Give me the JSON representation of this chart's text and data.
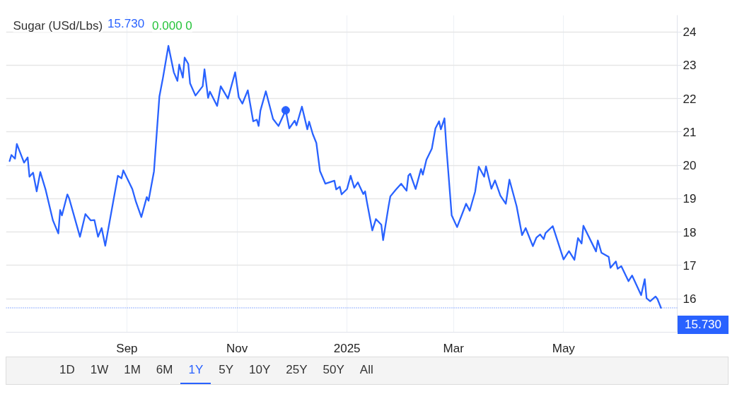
{
  "chart_data": {
    "type": "line",
    "title": "Sugar (USd/Lbs)",
    "annotations": [
      "15.730",
      "0.000 0",
      "1D",
      "1W",
      "1M",
      "6M",
      "1Y",
      "5Y",
      "10Y",
      "25Y",
      "50Y",
      "All"
    ],
    "x": [
      "2024-06-28",
      "2024-06-29",
      "2024-07-01",
      "2024-07-02",
      "2024-07-06",
      "2024-07-08",
      "2024-07-09",
      "2024-07-11",
      "2024-07-13",
      "2024-07-15",
      "2024-07-18",
      "2024-07-22",
      "2024-07-25",
      "2024-07-26",
      "2024-07-27",
      "2024-07-30",
      "2024-07-31",
      "2024-08-06",
      "2024-08-09",
      "2024-08-12",
      "2024-08-14",
      "2024-08-16",
      "2024-08-18",
      "2024-08-20",
      "2024-08-27",
      "2024-08-29",
      "2024-08-30",
      "2024-09-04",
      "2024-09-06",
      "2024-09-09",
      "2024-09-12",
      "2024-09-13",
      "2024-09-16",
      "2024-09-19",
      "2024-09-21",
      "2024-09-24",
      "2024-09-27",
      "2024-09-29",
      "2024-09-30",
      "2024-10-02",
      "2024-10-03",
      "2024-10-05",
      "2024-10-06",
      "2024-10-09",
      "2024-10-13",
      "2024-10-14",
      "2024-10-16",
      "2024-10-17",
      "2024-10-21",
      "2024-10-23",
      "2024-10-27",
      "2024-10-31",
      "2024-11-02",
      "2024-11-04",
      "2024-11-07",
      "2024-11-10",
      "2024-11-12",
      "2024-11-13",
      "2024-11-14",
      "2024-11-17",
      "2024-11-21",
      "2024-11-24",
      "2024-11-28",
      "2024-11-30",
      "2024-12-03",
      "2024-12-04",
      "2024-12-07",
      "2024-12-10",
      "2024-12-11",
      "2024-12-13",
      "2024-12-15",
      "2024-12-17",
      "2024-12-20",
      "2024-12-25",
      "2024-12-26",
      "2024-12-28",
      "2024-12-29",
      "2025-01-01",
      "2025-01-03",
      "2025-01-05",
      "2025-01-07",
      "2025-01-10",
      "2025-01-11",
      "2025-01-12",
      "2025-01-15",
      "2025-01-17",
      "2025-01-20",
      "2025-01-21",
      "2025-01-24",
      "2025-01-25",
      "2025-01-28",
      "2025-01-31",
      "2025-02-03",
      "2025-02-04",
      "2025-02-05",
      "2025-02-08",
      "2025-02-11",
      "2025-02-12",
      "2025-02-14",
      "2025-02-17",
      "2025-02-19",
      "2025-02-21",
      "2025-02-22",
      "2025-02-24",
      "2025-02-25",
      "2025-02-28",
      "2025-03-03",
      "2025-03-08",
      "2025-03-10",
      "2025-03-13",
      "2025-03-15",
      "2025-03-18",
      "2025-03-19",
      "2025-03-22",
      "2025-03-24",
      "2025-03-27",
      "2025-03-30",
      "2025-04-01",
      "2025-04-05",
      "2025-04-08",
      "2025-04-10",
      "2025-04-14",
      "2025-04-16",
      "2025-04-18",
      "2025-04-20",
      "2025-04-21",
      "2025-04-25",
      "2025-05-01",
      "2025-05-04",
      "2025-05-07",
      "2025-05-09",
      "2025-05-11",
      "2025-05-12",
      "2025-05-19",
      "2025-05-20",
      "2025-05-22",
      "2025-05-26",
      "2025-05-27",
      "2025-05-30",
      "2025-05-31",
      "2025-06-02",
      "2025-06-06",
      "2025-06-08",
      "2025-06-13",
      "2025-06-15",
      "2025-06-16",
      "2025-06-18",
      "2025-06-21",
      "2025-06-22",
      "2025-06-24"
    ],
    "series": [
      {
        "color": "#2962ff",
        "values": [
          20.13,
          20.31,
          20.2,
          20.64,
          20.08,
          20.24,
          19.66,
          19.78,
          19.22,
          19.8,
          19.26,
          18.35,
          17.96,
          18.66,
          18.5,
          19.13,
          19.01,
          17.86,
          18.54,
          18.35,
          18.36,
          17.86,
          18.12,
          17.59,
          19.69,
          19.61,
          19.85,
          19.29,
          18.91,
          18.45,
          19.05,
          18.94,
          19.82,
          22.06,
          22.63,
          23.58,
          22.79,
          22.53,
          23.02,
          22.63,
          23.23,
          23.04,
          22.46,
          22.09,
          22.37,
          22.88,
          22.02,
          22.21,
          21.78,
          22.37,
          22.0,
          22.79,
          22.04,
          21.85,
          22.25,
          21.32,
          21.37,
          21.18,
          21.64,
          22.22,
          21.39,
          21.18,
          21.65,
          21.11,
          21.34,
          21.2,
          21.76,
          21.08,
          21.31,
          20.94,
          20.67,
          19.83,
          19.45,
          19.54,
          19.28,
          19.36,
          19.13,
          19.29,
          19.69,
          19.33,
          19.49,
          19.14,
          19.22,
          18.91,
          18.05,
          18.39,
          18.22,
          17.76,
          18.77,
          19.07,
          19.27,
          19.45,
          19.24,
          19.69,
          19.75,
          19.29,
          19.89,
          19.72,
          20.17,
          20.5,
          21.11,
          21.32,
          21.08,
          21.41,
          20.59,
          18.5,
          18.15,
          18.85,
          18.64,
          19.21,
          19.96,
          19.66,
          19.97,
          19.3,
          19.55,
          19.09,
          18.85,
          19.57,
          18.77,
          17.91,
          18.12,
          17.58,
          17.84,
          17.93,
          17.79,
          17.97,
          18.18,
          17.18,
          17.43,
          17.17,
          17.82,
          17.66,
          18.19,
          17.42,
          17.75,
          17.38,
          17.26,
          16.93,
          17.12,
          16.9,
          16.98,
          16.53,
          16.7,
          16.11,
          16.59,
          16.02,
          15.93,
          16.07,
          16.0,
          15.73
        ]
      },
      {
        "type": "scatter",
        "color": "#2962ff",
        "marker": "circle",
        "x": [
          "2024-11-28"
        ],
        "values": [
          21.65
        ]
      }
    ],
    "xlim": [
      "2024-06-26",
      "2025-07-03"
    ],
    "ylim": [
      15,
      24.5
    ],
    "xticks": [
      {
        "value": "2024-09-01",
        "label": "Sep"
      },
      {
        "value": "2024-11-01",
        "label": "Nov"
      },
      {
        "value": "2025-01-01",
        "label": "2025"
      },
      {
        "value": "2025-03-01",
        "label": "Mar"
      },
      {
        "value": "2025-05-01",
        "label": "May"
      }
    ],
    "yticks": [
      16,
      17,
      18,
      19,
      20,
      21,
      22,
      23,
      24
    ],
    "ref_lines": [
      {
        "axis": "y",
        "value": 15.73,
        "label": "15.730",
        "color": "#2962ff",
        "line_style": "dotted"
      }
    ],
    "grid": true,
    "line_style": "solid"
  }
}
